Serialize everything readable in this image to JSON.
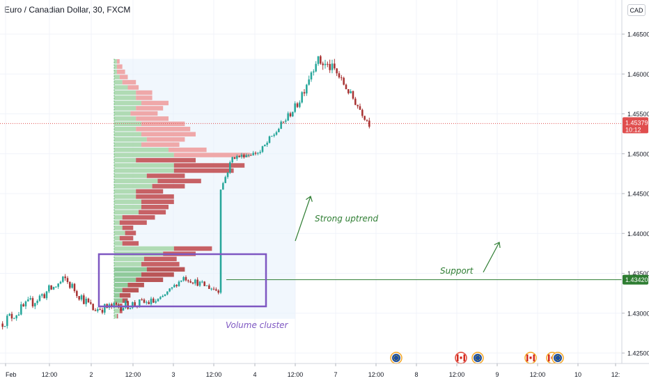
{
  "header": {
    "title": "Euro / Canadian Dollar, 30, FXCM",
    "currency": "CAD"
  },
  "colors": {
    "up": "#26a69a",
    "down": "#a83232",
    "annotation": "#2e7d32",
    "box": "#7e57c2",
    "label_last": "#e04e4e",
    "label_support": "#2e7d32"
  },
  "chart_data": {
    "type": "candlestick",
    "symbol": "Euro / Canadian Dollar, 30, FXCM",
    "y_axis": {
      "ticks": [
        "1.46500",
        "1.46000",
        "1.45500",
        "1.45000",
        "1.44500",
        "1.44000",
        "1.43500",
        "1.43000",
        "1.42500"
      ],
      "range": [
        1.4245,
        1.4685
      ]
    },
    "x_axis": {
      "ticks": [
        "Feb",
        "12:00",
        "2",
        "12:00",
        "3",
        "12:00",
        "4",
        "12:00",
        "7",
        "12:00",
        "8",
        "12:00",
        "9",
        "12:00",
        "10",
        "12:"
      ]
    },
    "last_price": {
      "value": "1.45379",
      "countdown": "10:12"
    },
    "support_price": {
      "value": "1.43420"
    },
    "segments": [
      {
        "from": 1.4287,
        "to": 1.4342,
        "n": 28,
        "amp": 0.00075,
        "wick": 0.00035
      },
      {
        "from": 1.4342,
        "to": 1.4305,
        "n": 12,
        "amp": 0.0007,
        "wick": 0.00035
      },
      {
        "from": 1.4305,
        "to": 1.4315,
        "n": 28,
        "amp": 0.0006,
        "wick": 0.0003
      },
      {
        "from": 1.4315,
        "to": 1.4345,
        "n": 11,
        "amp": 0.0003,
        "wick": 0.0002
      },
      {
        "from": 1.4345,
        "to": 1.4328,
        "n": 15,
        "amp": 0.0004,
        "wick": 0.0003
      },
      {
        "from": 1.4328,
        "to": 1.4455,
        "n": 1,
        "amp": 0,
        "wick": 0.0002
      },
      {
        "from": 1.4455,
        "to": 1.4495,
        "n": 5,
        "amp": 0.0004,
        "wick": 0.0003
      },
      {
        "from": 1.4495,
        "to": 1.4502,
        "n": 12,
        "amp": 0.00025,
        "wick": 0.00025
      },
      {
        "from": 1.4502,
        "to": 1.4562,
        "n": 16,
        "amp": 0.0005,
        "wick": 0.0003
      },
      {
        "from": 1.4562,
        "to": 1.4618,
        "n": 8,
        "amp": 0.0008,
        "wick": 0.0005
      },
      {
        "from": 1.4618,
        "to": 1.4605,
        "n": 8,
        "amp": 0.0007,
        "wick": 0.0006
      },
      {
        "from": 1.4605,
        "to": 1.4538,
        "n": 15,
        "amp": 0.0005,
        "wick": 0.0004
      }
    ],
    "volume_profile": {
      "price_range": [
        1.4293,
        1.4619
      ],
      "rows": [
        [
          1,
          0.4
        ],
        [
          2,
          1
        ],
        [
          2,
          1
        ],
        [
          3,
          2
        ],
        [
          2,
          4
        ],
        [
          3,
          6
        ],
        [
          5,
          6
        ],
        [
          8,
          10
        ],
        [
          10,
          12
        ],
        [
          12,
          14
        ],
        [
          10,
          14
        ],
        [
          11,
          12
        ],
        [
          18,
          12
        ],
        [
          22,
          14
        ],
        [
          3,
          6
        ],
        [
          2,
          5
        ],
        [
          4,
          4
        ],
        [
          3,
          4
        ],
        [
          2,
          10
        ],
        [
          3,
          12
        ],
        [
          9,
          10
        ],
        [
          10,
          10
        ],
        [
          10,
          12
        ],
        [
          8,
          14
        ],
        [
          8,
          10
        ],
        [
          14,
          12
        ],
        [
          16,
          16
        ],
        [
          12,
          14
        ],
        [
          22,
          22
        ],
        [
          22,
          26
        ],
        [
          8,
          22
        ],
        [
          22,
          28
        ],
        [
          20,
          14
        ],
        [
          10,
          14
        ],
        [
          12,
          14
        ],
        [
          10,
          20
        ],
        [
          8,
          20
        ],
        [
          10,
          16
        ],
        [
          8,
          12
        ],
        [
          6,
          10
        ],
        [
          8,
          10
        ],
        [
          10,
          10
        ],
        [
          8,
          6
        ],
        [
          8,
          6
        ],
        [
          5,
          4
        ],
        [
          3,
          5
        ],
        [
          2,
          3
        ],
        [
          1,
          3
        ],
        [
          1,
          2
        ],
        [
          1,
          1
        ]
      ]
    },
    "annotations": [
      {
        "text": "Strong uptrend"
      },
      {
        "text": "Support"
      },
      {
        "text": "Volume cluster"
      }
    ],
    "event_icons": [
      "eu",
      "ca",
      "eu",
      "ca",
      "ca",
      "eu"
    ]
  }
}
